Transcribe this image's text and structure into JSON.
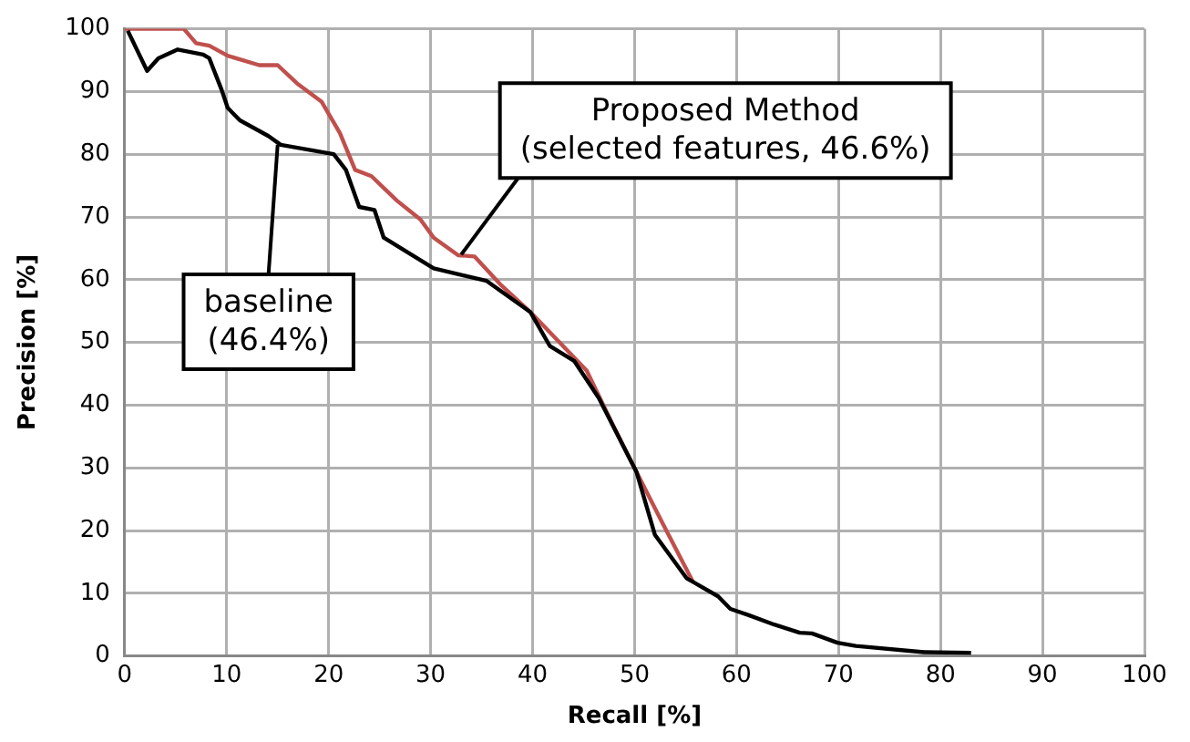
{
  "chart_data": {
    "type": "line",
    "xlabel": "Recall [%]",
    "ylabel": "Precision [%]",
    "xlim": [
      0,
      100
    ],
    "xticks": [
      0,
      10,
      20,
      30,
      40,
      50,
      60,
      70,
      80,
      90,
      100
    ],
    "ylim": [
      0,
      100
    ],
    "yticks": [
      0,
      10,
      20,
      30,
      40,
      50,
      60,
      70,
      80,
      90,
      100
    ],
    "grid": true,
    "legend": false,
    "marker": "none",
    "line_style": "solid",
    "series": [
      {
        "color": "#000000",
        "x": [
          0.3,
          2.2,
          3.3,
          5.2,
          7.7,
          8.3,
          9.5,
          10.1,
          11.3,
          14.1,
          15.3,
          20.5,
          21.7,
          23,
          24.5,
          25.4,
          27.9,
          30.3,
          35.5,
          39.8,
          41.7,
          44.1,
          46.5,
          50.2,
          52,
          55.1,
          58.2,
          59.4,
          61.2,
          63.7,
          66.2,
          67.4,
          69.9,
          71.7,
          78.4,
          83
        ],
        "values": [
          99.7,
          93.3,
          95.3,
          96.7,
          95.9,
          95.3,
          90.3,
          87.4,
          85.4,
          82.9,
          81.5,
          80,
          77.5,
          71.6,
          71.1,
          66.7,
          64.2,
          61.8,
          59.8,
          54.8,
          49.4,
          47,
          41.1,
          29.3,
          19.3,
          12.4,
          9.5,
          7.5,
          6.5,
          5,
          3.7,
          3.6,
          2.1,
          1.6,
          0.6,
          0.5
        ]
      },
      {
        "color": "#c0504d",
        "x": [
          0,
          5.8,
          7,
          8.3,
          10.1,
          13.2,
          15,
          16.9,
          19.3,
          21.1,
          22.6,
          24.2,
          26.7,
          29,
          30.3,
          32.7,
          34.3,
          36.8,
          39.8,
          45.3,
          47.8,
          50.2,
          52.7,
          55.7
        ],
        "values": [
          100,
          100,
          97.7,
          97.3,
          95.7,
          94.2,
          94.2,
          91.3,
          88.4,
          83.4,
          77.5,
          76.5,
          72.6,
          69.6,
          66.7,
          63.9,
          63.7,
          59.3,
          54.8,
          45.5,
          37.1,
          29.3,
          21.3,
          11.9
        ]
      }
    ],
    "annotations": [
      {
        "text": "baseline\n(46.4%)",
        "x": 15,
        "y": 81.5
      },
      {
        "text": "Proposed Method\n(selected features, 46.6%)",
        "x": 33,
        "y": 64
      }
    ]
  }
}
